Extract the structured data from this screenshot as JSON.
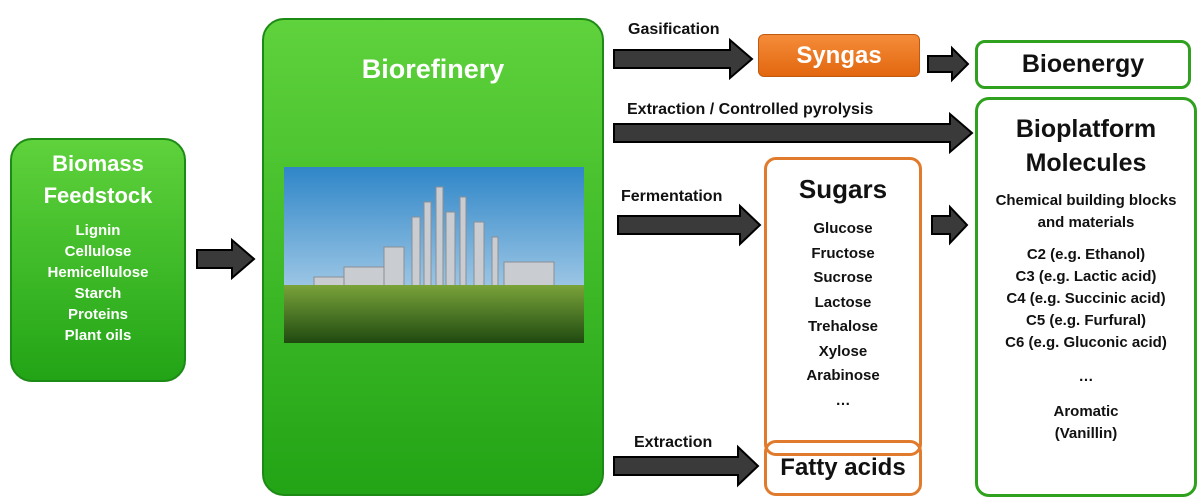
{
  "biomass": {
    "title": "Biomass Feedstock",
    "items": [
      "Lignin",
      "Cellulose",
      "Hemicellulose",
      "Starch",
      "Proteins",
      "Plant oils"
    ]
  },
  "biorefinery": {
    "title": "Biorefinery"
  },
  "processes": {
    "gasification": "Gasification",
    "pyrolysis": "Extraction / Controlled pyrolysis",
    "fermentation": "Fermentation",
    "extraction": "Extraction"
  },
  "syngas": {
    "title": "Syngas"
  },
  "bioenergy": {
    "title": "Bioenergy"
  },
  "sugars": {
    "title": "Sugars",
    "items": [
      "Glucose",
      "Fructose",
      "Sucrose",
      "Lactose",
      "Trehalose",
      "Xylose",
      "Arabinose",
      "…"
    ]
  },
  "fatty_acids": {
    "title": "Fatty acids"
  },
  "bioplatform": {
    "title": "Bioplatform Molecules",
    "subtitle": "Chemical building blocks and materials",
    "items": [
      "C2 (e.g. Ethanol)",
      "C3 (e.g. Lactic acid)",
      "C4 (e.g. Succinic acid)",
      "C5 (e.g. Furfural)",
      "C6 (e.g. Gluconic acid)"
    ],
    "ellipsis": "…",
    "last": "Aromatic (Vanillin)"
  }
}
